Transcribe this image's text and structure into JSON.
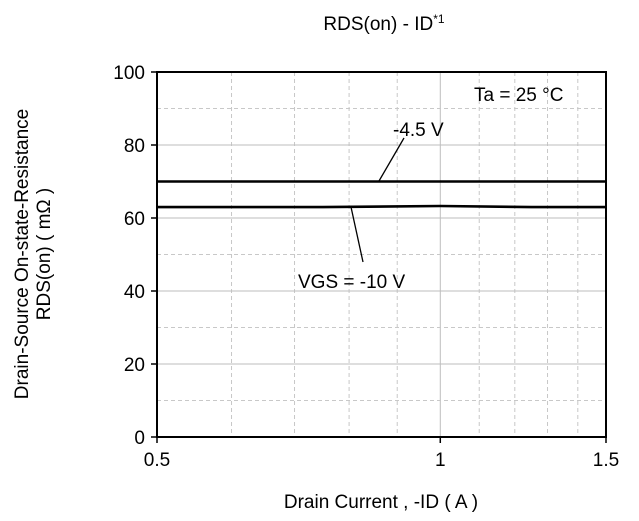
{
  "chart_data": {
    "type": "line",
    "title": "RDS(on) - ID",
    "title_sup": "*1",
    "xlabel": "Drain Current , -ID ( A )",
    "ylabel_line1": "Drain-Source On-state-Resistance",
    "ylabel_line2": "RDS(on) ( mΩ )",
    "xlim": [
      0.5,
      1.5
    ],
    "ylim": [
      0,
      100
    ],
    "x_scale": "log",
    "x_ticks": [
      "0.5",
      "1",
      "1.5"
    ],
    "y_ticks": [
      "0",
      "20",
      "40",
      "60",
      "80",
      "100"
    ],
    "grid": true,
    "condition": "Ta = 25 °C",
    "series": [
      {
        "name": "-4.5 V",
        "x": [
          0.5,
          0.75,
          1.0,
          1.25,
          1.5
        ],
        "y": [
          70,
          70,
          70,
          70,
          70
        ]
      },
      {
        "name": "VGS = -10 V",
        "x": [
          0.5,
          0.75,
          1.0,
          1.25,
          1.5
        ],
        "y": [
          63,
          63,
          63.3,
          63,
          63
        ]
      }
    ]
  }
}
